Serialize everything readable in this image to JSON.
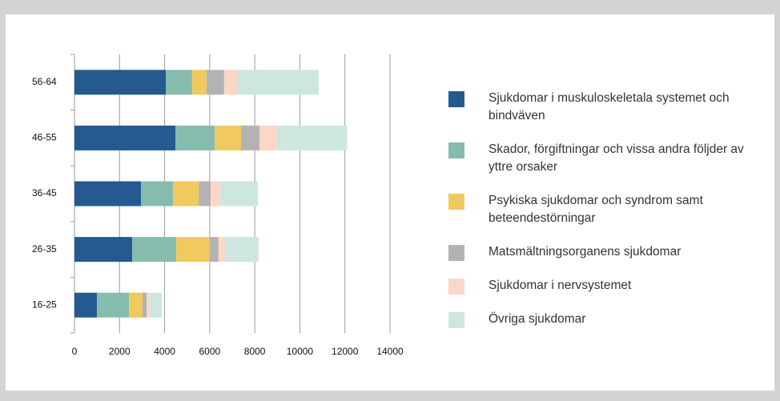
{
  "chart_data": {
    "type": "stacked-barh",
    "categories": [
      "56-64",
      "46-55",
      "36-45",
      "26-35",
      "16-25"
    ],
    "series": [
      {
        "name": "Sjukdomar i muskuloskeletala systemet och bindväven",
        "color": "#245a8f",
        "values": [
          4050,
          4480,
          2950,
          2560,
          1000
        ]
      },
      {
        "name": "Skador, förgiftningar och vissa andra följder av yttre orsaker",
        "color": "#86bcae",
        "values": [
          1170,
          1740,
          1420,
          1950,
          1420
        ]
      },
      {
        "name": "Psykiska sjukdomar och syndrom samt beteendestörningar",
        "color": "#f0c95f",
        "values": [
          640,
          1170,
          1140,
          1490,
          600
        ]
      },
      {
        "name": "Matsmältningsorganens sjukdomar",
        "color": "#b3b3b3",
        "values": [
          780,
          820,
          530,
          390,
          180
        ]
      },
      {
        "name": "Sjukdomar i nervsystemet",
        "color": "#fdd6c6",
        "values": [
          570,
          750,
          430,
          280,
          110
        ]
      },
      {
        "name": "Övriga sjukdomar",
        "color": "#cde6df",
        "values": [
          3620,
          3130,
          1670,
          1490,
          570
        ]
      }
    ],
    "xlim": [
      0,
      14000
    ],
    "xticks": [
      0,
      2000,
      4000,
      6000,
      8000,
      10000,
      12000,
      14000
    ],
    "grid": true
  }
}
